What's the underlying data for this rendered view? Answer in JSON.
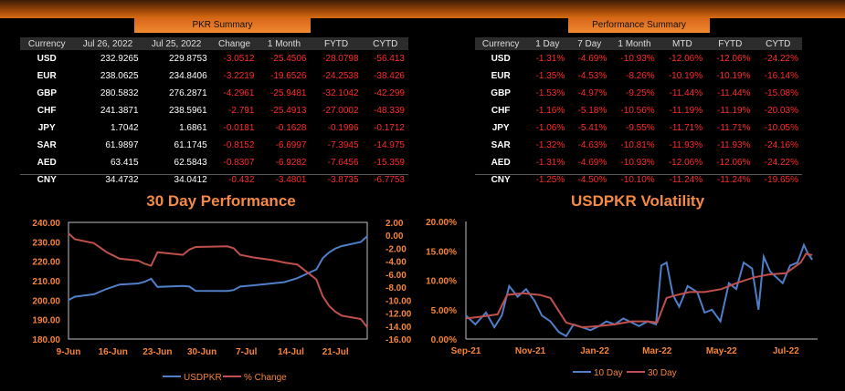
{
  "pkr": {
    "title": "PKR Summary",
    "headers": [
      "Currency",
      "Jul 26, 2022",
      "Jul 25, 2022",
      "Change",
      "1 Month",
      "FYTD",
      "CYTD"
    ],
    "rows": [
      [
        "USD",
        "232.9265",
        "229.8753",
        "-3.0512",
        "-25.4506",
        "-28.0798",
        "-56.413"
      ],
      [
        "EUR",
        "238.0625",
        "234.8406",
        "-3.2219",
        "-19.6526",
        "-24.2538",
        "-38.426"
      ],
      [
        "GBP",
        "280.5832",
        "276.2871",
        "-4.2961",
        "-25.9481",
        "-32.1042",
        "-42.299"
      ],
      [
        "CHF",
        "241.3871",
        "238.5961",
        "-2.791",
        "-25.4913",
        "-27.0002",
        "-48.339"
      ],
      [
        "JPY",
        "1.7042",
        "1.6861",
        "-0.0181",
        "-0.1628",
        "-0.1996",
        "-0.1712"
      ],
      [
        "SAR",
        "61.9897",
        "61.1745",
        "-0.8152",
        "-6.6997",
        "-7.3945",
        "-14.975"
      ],
      [
        "AED",
        "63.415",
        "62.5843",
        "-0.8307",
        "-6.9282",
        "-7.6456",
        "-15.359"
      ],
      [
        "CNY",
        "34.4732",
        "34.0412",
        "-0.432",
        "-3.4801",
        "-3.8735",
        "-6.7753"
      ]
    ]
  },
  "perf": {
    "title": "Performance Summary",
    "headers": [
      "Currency",
      "1 Day",
      "7 Day",
      "1 Month",
      "MTD",
      "FYTD",
      "CYTD"
    ],
    "rows": [
      [
        "USD",
        "-1.31%",
        "-4.69%",
        "-10.93%",
        "-12.06%",
        "-12.06%",
        "-24.22%"
      ],
      [
        "EUR",
        "-1.35%",
        "-4.53%",
        "-8.26%",
        "-10.19%",
        "-10.19%",
        "-16.14%"
      ],
      [
        "GBP",
        "-1.53%",
        "-4.97%",
        "-9.25%",
        "-11.44%",
        "-11.44%",
        "-15.08%"
      ],
      [
        "CHF",
        "-1.16%",
        "-5.18%",
        "-10.56%",
        "-11.19%",
        "-11.19%",
        "-20.03%"
      ],
      [
        "JPY",
        "-1.06%",
        "-5.41%",
        "-9.55%",
        "-11.71%",
        "-11.71%",
        "-10.05%"
      ],
      [
        "SAR",
        "-1.32%",
        "-4.63%",
        "-10.81%",
        "-11.93%",
        "-11.93%",
        "-24.16%"
      ],
      [
        "AED",
        "-1.31%",
        "-4.69%",
        "-10.93%",
        "-12.06%",
        "-12.06%",
        "-24.22%"
      ],
      [
        "CNY",
        "-1.25%",
        "-4.50%",
        "-10.10%",
        "-11.24%",
        "-11.24%",
        "-19.65%"
      ]
    ]
  },
  "chart_data": [
    {
      "type": "line",
      "title": "30 Day Performance",
      "x_start": "2022-06-09",
      "x_end": "2022-07-26",
      "x_ticks": [
        "9-Jun",
        "16-Jun",
        "23-Jun",
        "30-Jun",
        "7-Jul",
        "14-Jul",
        "21-Jul"
      ],
      "y_left": {
        "ylim": [
          180,
          240
        ],
        "ticks": [
          "180.00",
          "190.00",
          "200.00",
          "210.00",
          "220.00",
          "230.00",
          "240.00"
        ]
      },
      "y_right": {
        "ylim": [
          -16,
          2
        ],
        "ticks": [
          "-16.00",
          "-14.00",
          "-12.00",
          "-10.00",
          "-8.00",
          "-6.00",
          "-4.00",
          "-2.00",
          "0.00",
          "2.00"
        ]
      },
      "series": [
        {
          "name": "USDPKR",
          "axis": "left",
          "color": "#4f7fc8",
          "points": [
            [
              "2022-06-09",
              200.0
            ],
            [
              "2022-06-10",
              201.8
            ],
            [
              "2022-06-13",
              203.0
            ],
            [
              "2022-06-15",
              205.8
            ],
            [
              "2022-06-17",
              208.0
            ],
            [
              "2022-06-20",
              208.6
            ],
            [
              "2022-06-21",
              209.5
            ],
            [
              "2022-06-22",
              211.0
            ],
            [
              "2022-06-23",
              206.8
            ],
            [
              "2022-06-27",
              207.3
            ],
            [
              "2022-06-28",
              207.0
            ],
            [
              "2022-06-29",
              204.8
            ],
            [
              "2022-07-04",
              204.7
            ],
            [
              "2022-07-05",
              205.2
            ],
            [
              "2022-07-06",
              207.0
            ],
            [
              "2022-07-08",
              207.6
            ],
            [
              "2022-07-11",
              208.6
            ],
            [
              "2022-07-13",
              209.3
            ],
            [
              "2022-07-15",
              211.3
            ],
            [
              "2022-07-18",
              215.8
            ],
            [
              "2022-07-19",
              221.6
            ],
            [
              "2022-07-20",
              224.6
            ],
            [
              "2022-07-21",
              226.6
            ],
            [
              "2022-07-22",
              227.8
            ],
            [
              "2022-07-25",
              229.9
            ],
            [
              "2022-07-26",
              232.9
            ]
          ]
        },
        {
          "name": "% Change",
          "axis": "right",
          "color": "#c0504d",
          "points": [
            [
              "2022-06-09",
              0.3
            ],
            [
              "2022-06-10",
              -0.6
            ],
            [
              "2022-06-13",
              -1.2
            ],
            [
              "2022-06-15",
              -2.6
            ],
            [
              "2022-06-17",
              -3.6
            ],
            [
              "2022-06-20",
              -3.9
            ],
            [
              "2022-06-21",
              -4.4
            ],
            [
              "2022-06-22",
              -4.7
            ],
            [
              "2022-06-23",
              -2.6
            ],
            [
              "2022-06-27",
              -3.0
            ],
            [
              "2022-06-28",
              -2.2
            ],
            [
              "2022-06-29",
              -1.8
            ],
            [
              "2022-07-04",
              -1.7
            ],
            [
              "2022-07-05",
              -2.0
            ],
            [
              "2022-07-06",
              -3.0
            ],
            [
              "2022-07-08",
              -3.4
            ],
            [
              "2022-07-11",
              -3.8
            ],
            [
              "2022-07-13",
              -4.2
            ],
            [
              "2022-07-15",
              -4.5
            ],
            [
              "2022-07-18",
              -6.8
            ],
            [
              "2022-07-19",
              -9.4
            ],
            [
              "2022-07-20",
              -10.9
            ],
            [
              "2022-07-21",
              -11.8
            ],
            [
              "2022-07-22",
              -12.4
            ],
            [
              "2022-07-25",
              -12.9
            ],
            [
              "2022-07-26",
              -14.2
            ]
          ]
        }
      ]
    },
    {
      "type": "line",
      "title": "USDPKR Volatility",
      "x_start": "2021-09-01",
      "x_end": "2022-07-31",
      "x_ticks": [
        "Sep-21",
        "Nov-21",
        "Jan-22",
        "Mar-22",
        "May-22",
        "Jul-22"
      ],
      "ylim": [
        0,
        0.2
      ],
      "y_ticks": [
        "0.00%",
        "5.00%",
        "10.00%",
        "15.00%",
        "20.00%"
      ],
      "series": [
        {
          "name": "10 Day",
          "color": "#4f7fc8",
          "points": [
            [
              "2021-09-01",
              0.04
            ],
            [
              "2021-09-10",
              0.025
            ],
            [
              "2021-09-20",
              0.045
            ],
            [
              "2021-09-28",
              0.02
            ],
            [
              "2021-10-05",
              0.04
            ],
            [
              "2021-10-12",
              0.09
            ],
            [
              "2021-10-20",
              0.072
            ],
            [
              "2021-10-28",
              0.085
            ],
            [
              "2021-11-05",
              0.065
            ],
            [
              "2021-11-12",
              0.04
            ],
            [
              "2021-11-20",
              0.03
            ],
            [
              "2021-11-28",
              0.012
            ],
            [
              "2021-12-05",
              0.005
            ],
            [
              "2021-12-12",
              0.025
            ],
            [
              "2021-12-20",
              0.02
            ],
            [
              "2021-12-28",
              0.015
            ],
            [
              "2022-01-05",
              0.022
            ],
            [
              "2022-01-12",
              0.03
            ],
            [
              "2022-01-20",
              0.025
            ],
            [
              "2022-01-28",
              0.035
            ],
            [
              "2022-02-05",
              0.028
            ],
            [
              "2022-02-12",
              0.022
            ],
            [
              "2022-02-20",
              0.03
            ],
            [
              "2022-02-28",
              0.025
            ],
            [
              "2022-03-05",
              0.125
            ],
            [
              "2022-03-10",
              0.13
            ],
            [
              "2022-03-16",
              0.075
            ],
            [
              "2022-03-22",
              0.055
            ],
            [
              "2022-03-30",
              0.09
            ],
            [
              "2022-04-08",
              0.08
            ],
            [
              "2022-04-15",
              0.045
            ],
            [
              "2022-04-22",
              0.05
            ],
            [
              "2022-04-30",
              0.03
            ],
            [
              "2022-05-08",
              0.095
            ],
            [
              "2022-05-15",
              0.085
            ],
            [
              "2022-05-22",
              0.13
            ],
            [
              "2022-05-30",
              0.12
            ],
            [
              "2022-06-05",
              0.05
            ],
            [
              "2022-06-10",
              0.14
            ],
            [
              "2022-06-16",
              0.115
            ],
            [
              "2022-06-22",
              0.105
            ],
            [
              "2022-06-28",
              0.095
            ],
            [
              "2022-07-05",
              0.125
            ],
            [
              "2022-07-12",
              0.13
            ],
            [
              "2022-07-18",
              0.16
            ],
            [
              "2022-07-22",
              0.145
            ],
            [
              "2022-07-26",
              0.135
            ]
          ]
        },
        {
          "name": "30 Day",
          "color": "#c0504d",
          "points": [
            [
              "2021-09-01",
              0.035
            ],
            [
              "2021-09-15",
              0.038
            ],
            [
              "2021-10-01",
              0.042
            ],
            [
              "2021-10-10",
              0.075
            ],
            [
              "2021-10-25",
              0.078
            ],
            [
              "2021-11-10",
              0.075
            ],
            [
              "2021-11-20",
              0.07
            ],
            [
              "2021-12-05",
              0.028
            ],
            [
              "2021-12-20",
              0.02
            ],
            [
              "2022-01-05",
              0.022
            ],
            [
              "2022-01-20",
              0.025
            ],
            [
              "2022-02-05",
              0.03
            ],
            [
              "2022-02-20",
              0.03
            ],
            [
              "2022-03-01",
              0.028
            ],
            [
              "2022-03-10",
              0.07
            ],
            [
              "2022-03-20",
              0.075
            ],
            [
              "2022-04-01",
              0.08
            ],
            [
              "2022-04-15",
              0.08
            ],
            [
              "2022-05-01",
              0.085
            ],
            [
              "2022-05-15",
              0.095
            ],
            [
              "2022-06-01",
              0.105
            ],
            [
              "2022-06-15",
              0.11
            ],
            [
              "2022-07-01",
              0.112
            ],
            [
              "2022-07-15",
              0.13
            ],
            [
              "2022-07-20",
              0.145
            ],
            [
              "2022-07-26",
              0.143
            ]
          ]
        }
      ]
    }
  ]
}
